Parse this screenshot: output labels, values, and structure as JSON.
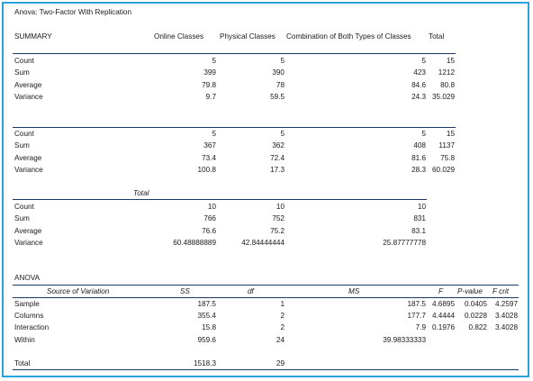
{
  "title": "Anova: Two-Factor With Replication",
  "summary": {
    "label": "SUMMARY",
    "headers": [
      "Online Classes",
      "Physical Classes",
      "Combination of Both Types of Classes",
      "Total"
    ],
    "row_labels": [
      "Count",
      "Sum",
      "Average",
      "Variance"
    ],
    "block1": [
      [
        "5",
        "5",
        "5",
        "15"
      ],
      [
        "399",
        "390",
        "423",
        "1212"
      ],
      [
        "79.8",
        "78",
        "84.6",
        "80.8"
      ],
      [
        "9.7",
        "59.5",
        "24.3",
        "35.029"
      ]
    ],
    "block2": [
      [
        "5",
        "5",
        "5",
        "15"
      ],
      [
        "367",
        "362",
        "408",
        "1137"
      ],
      [
        "73.4",
        "72.4",
        "81.6",
        "75.8"
      ],
      [
        "100.8",
        "17.3",
        "28.3",
        "60.029"
      ]
    ],
    "total_label": "Total",
    "block3": [
      [
        "10",
        "10",
        "10"
      ],
      [
        "766",
        "752",
        "831"
      ],
      [
        "76.6",
        "75.2",
        "83.1"
      ],
      [
        "60.48888889",
        "42.84444444",
        "25.87777778"
      ]
    ]
  },
  "anova": {
    "label": "ANOVA",
    "headers": [
      "Source of Variation",
      "SS",
      "df",
      "MS",
      "F",
      "P-value",
      "F crit"
    ],
    "rows": [
      {
        "source": "Sample",
        "ss": "187.5",
        "df": "1",
        "ms": "187.5",
        "f": "4.6895",
        "p": "0.0405",
        "fcrit": "4.2597"
      },
      {
        "source": "Columns",
        "ss": "355.4",
        "df": "2",
        "ms": "177.7",
        "f": "4.4444",
        "p": "0.0228",
        "fcrit": "3.4028"
      },
      {
        "source": "Interaction",
        "ss": "15.8",
        "df": "2",
        "ms": "7.9",
        "f": "0.1976",
        "p": "0.822",
        "fcrit": "3.4028"
      },
      {
        "source": "Within",
        "ss": "959.6",
        "df": "24",
        "ms": "39.98333333",
        "f": "",
        "p": "",
        "fcrit": ""
      }
    ],
    "total": {
      "source": "Total",
      "ss": "1518.3",
      "df": "29"
    }
  }
}
